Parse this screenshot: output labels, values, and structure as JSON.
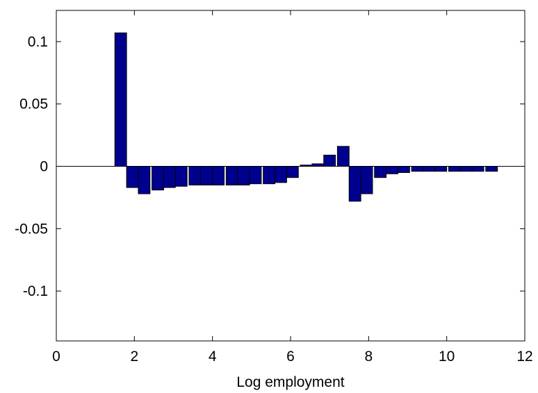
{
  "chart_data": {
    "type": "bar",
    "title": "",
    "xlabel": "Log employment",
    "ylabel": "",
    "xlim": [
      0,
      12
    ],
    "ylim": [
      -0.14,
      0.125
    ],
    "xticks": [
      0,
      2,
      4,
      6,
      8,
      10,
      12
    ],
    "xtick_labels": [
      "0",
      "2",
      "4",
      "6",
      "8",
      "10",
      "12"
    ],
    "yticks": [
      0.1,
      0.05,
      0,
      -0.05,
      -0.1
    ],
    "ytick_labels": [
      "0.1",
      "0.05",
      "0",
      "-0.05",
      "-0.1"
    ],
    "grid": false,
    "bar_color": "#00008f",
    "bar_width": 0.3,
    "x": [
      1.65,
      1.95,
      2.25,
      2.6,
      2.9,
      3.2,
      3.55,
      3.85,
      4.15,
      4.5,
      4.8,
      5.1,
      5.45,
      5.75,
      6.05,
      6.4,
      6.7,
      7.0,
      7.35,
      7.65,
      7.95,
      8.3,
      8.6,
      8.9,
      9.25,
      9.55,
      9.85,
      10.2,
      10.5,
      10.8,
      11.15
    ],
    "values": [
      0.107,
      -0.017,
      -0.022,
      -0.019,
      -0.017,
      -0.016,
      -0.015,
      -0.015,
      -0.015,
      -0.015,
      -0.015,
      -0.014,
      -0.014,
      -0.013,
      -0.009,
      0.001,
      0.002,
      0.009,
      0.016,
      -0.028,
      -0.022,
      -0.009,
      -0.006,
      -0.005,
      -0.004,
      -0.004,
      -0.004,
      -0.004,
      -0.004,
      -0.004,
      -0.004
    ]
  }
}
